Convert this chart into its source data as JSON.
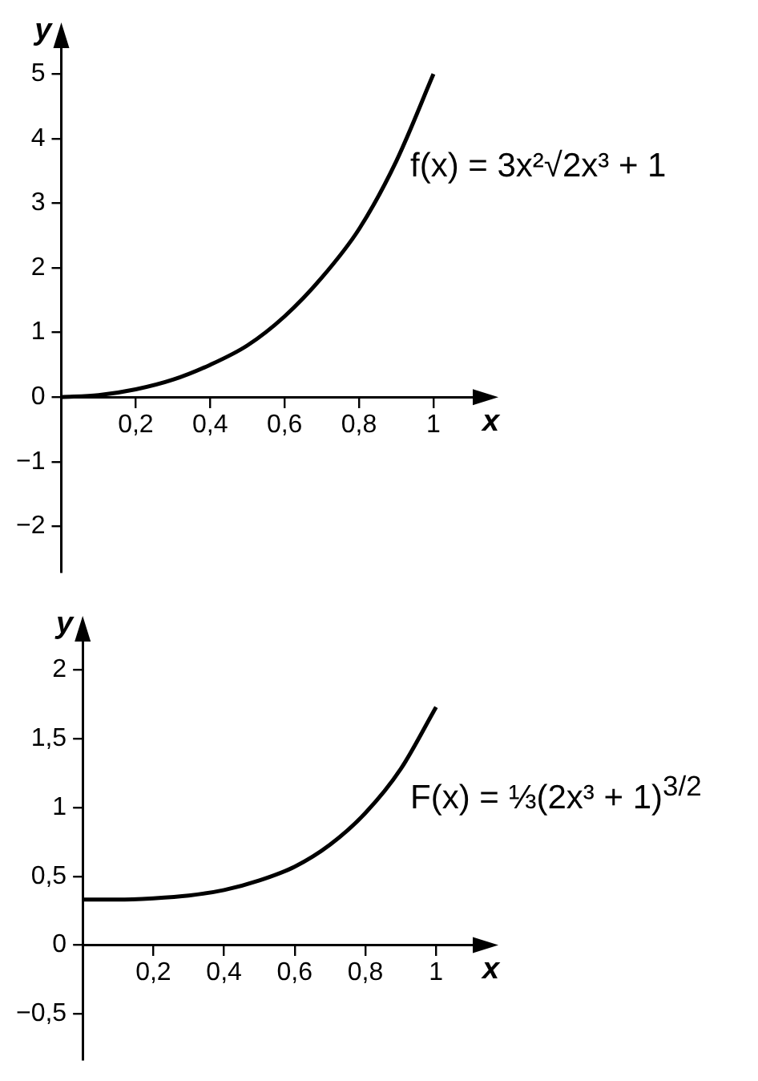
{
  "chart_data": [
    {
      "type": "line",
      "xlabel": "x",
      "ylabel": "y",
      "annotations": [
        "f(x) = 3x²√2x³ + 1"
      ],
      "x": [
        0,
        0.1,
        0.2,
        0.3,
        0.4,
        0.5,
        0.6,
        0.7,
        0.8,
        0.9,
        1
      ],
      "series": [
        {
          "color": "#000000",
          "values": [
            0,
            0.03,
            0.12,
            0.27,
            0.5,
            0.8,
            1.25,
            1.85,
            2.6,
            3.65,
            5
          ]
        }
      ],
      "xlim": [
        0,
        1.14
      ],
      "ylim": [
        -2.7,
        5.6
      ],
      "xticks": [
        {
          "value": 0.2,
          "label": "0,2"
        },
        {
          "value": 0.4,
          "label": "0,4"
        },
        {
          "value": 0.6,
          "label": "0,6"
        },
        {
          "value": 0.8,
          "label": "0,8"
        },
        1
      ],
      "yticks": [
        {
          "value": -2,
          "label": "−2"
        },
        {
          "value": -1,
          "label": "−1"
        },
        0,
        1,
        2,
        3,
        4,
        5
      ],
      "grid": false,
      "legend": false
    },
    {
      "type": "line",
      "xlabel": "x",
      "ylabel": "y",
      "annotations": [
        "F(x) = ⅓(2x³ + 1)$^{3/2}$"
      ],
      "x": [
        0,
        0.1,
        0.2,
        0.3,
        0.4,
        0.5,
        0.6,
        0.7,
        0.8,
        0.9,
        1
      ],
      "series": [
        {
          "color": "#000000",
          "values": [
            0.33,
            0.33,
            0.34,
            0.36,
            0.4,
            0.47,
            0.57,
            0.73,
            0.96,
            1.28,
            1.73
          ]
        }
      ],
      "xlim": [
        0,
        1.14
      ],
      "ylim": [
        -0.83,
        2.3
      ],
      "xticks": [
        {
          "value": 0.2,
          "label": "0,2"
        },
        {
          "value": 0.4,
          "label": "0,4"
        },
        {
          "value": 0.6,
          "label": "0,6"
        },
        {
          "value": 0.8,
          "label": "0,8"
        },
        1
      ],
      "yticks": [
        {
          "value": -0.5,
          "label": "−0,5"
        },
        0,
        {
          "value": 0.5,
          "label": "0,5"
        },
        1,
        {
          "value": 1.5,
          "label": "1,5"
        },
        2
      ],
      "grid": false,
      "legend": false
    }
  ]
}
